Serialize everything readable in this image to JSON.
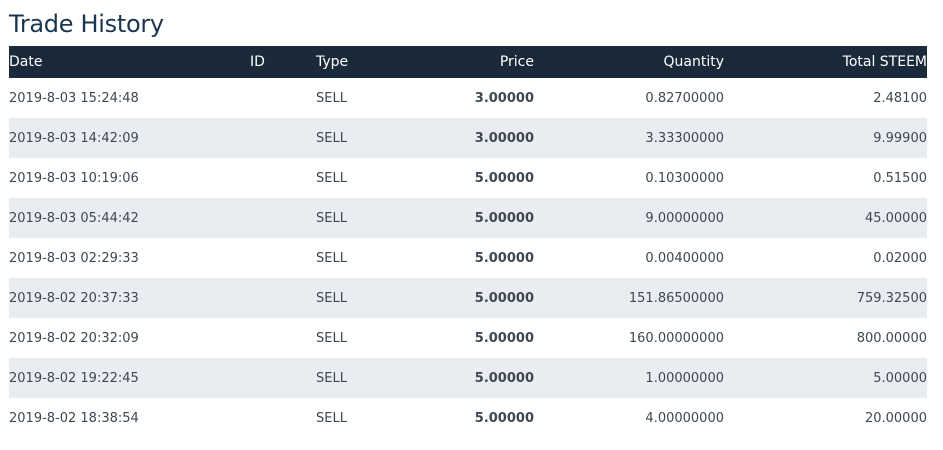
{
  "title": "Trade History",
  "columns": {
    "date": "Date",
    "id": "ID",
    "type": "Type",
    "price": "Price",
    "quantity": "Quantity",
    "total": "Total STEEM"
  },
  "rows": [
    {
      "date": "2019-8-03 15:24:48",
      "id": "",
      "type": "SELL",
      "price": "3.00000",
      "quantity": "0.82700000",
      "total": "2.48100"
    },
    {
      "date": "2019-8-03 14:42:09",
      "id": "",
      "type": "SELL",
      "price": "3.00000",
      "quantity": "3.33300000",
      "total": "9.99900"
    },
    {
      "date": "2019-8-03 10:19:06",
      "id": "",
      "type": "SELL",
      "price": "5.00000",
      "quantity": "0.10300000",
      "total": "0.51500"
    },
    {
      "date": "2019-8-03 05:44:42",
      "id": "",
      "type": "SELL",
      "price": "5.00000",
      "quantity": "9.00000000",
      "total": "45.00000"
    },
    {
      "date": "2019-8-03 02:29:33",
      "id": "",
      "type": "SELL",
      "price": "5.00000",
      "quantity": "0.00400000",
      "total": "0.02000"
    },
    {
      "date": "2019-8-02 20:37:33",
      "id": "",
      "type": "SELL",
      "price": "5.00000",
      "quantity": "151.86500000",
      "total": "759.32500"
    },
    {
      "date": "2019-8-02 20:32:09",
      "id": "",
      "type": "SELL",
      "price": "5.00000",
      "quantity": "160.00000000",
      "total": "800.00000"
    },
    {
      "date": "2019-8-02 19:22:45",
      "id": "",
      "type": "SELL",
      "price": "5.00000",
      "quantity": "1.00000000",
      "total": "5.00000"
    },
    {
      "date": "2019-8-02 18:38:54",
      "id": "",
      "type": "SELL",
      "price": "5.00000",
      "quantity": "4.00000000",
      "total": "20.00000"
    }
  ],
  "colors": {
    "header_bg": "#1b2a3a",
    "title": "#1b3550",
    "sell": "#d9202d",
    "stripe": "#e9edf1"
  }
}
